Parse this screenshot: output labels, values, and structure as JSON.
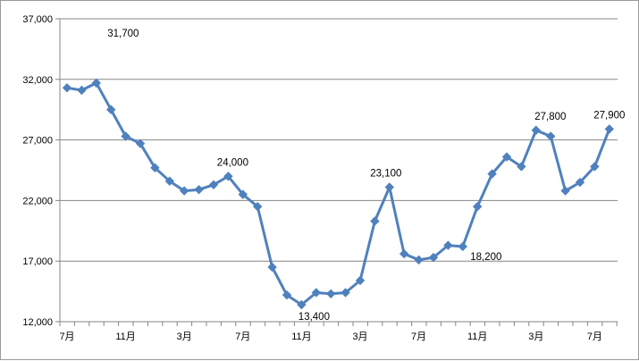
{
  "chart_data": {
    "type": "line",
    "title": "",
    "xlabel": "",
    "ylabel": "",
    "ylim": [
      12000,
      37000
    ],
    "yticks": [
      12000,
      17000,
      22000,
      27000,
      32000,
      37000
    ],
    "ytick_labels": [
      "12,000",
      "17,000",
      "22,000",
      "27,000",
      "32,000",
      "37,000"
    ],
    "x_tick_labels": [
      "7月",
      "11月",
      "3月",
      "7月",
      "11月",
      "3月",
      "7月",
      "11月",
      "3月",
      "7月"
    ],
    "x_tick_every": 4,
    "grid": "horizontal",
    "legend": "none",
    "series": [
      {
        "values": [
          31300,
          31100,
          31700,
          29500,
          27300,
          26700,
          24700,
          23600,
          22800,
          22900,
          23300,
          24000,
          22500,
          21500,
          16500,
          14200,
          13400,
          14400,
          14300,
          14400,
          15400,
          20300,
          23100,
          17600,
          17100,
          17300,
          18300,
          18200,
          21500,
          24200,
          25600,
          24800,
          27800,
          27300,
          22800,
          23500,
          24800,
          27900
        ],
        "color": "#4F81BD"
      }
    ],
    "data_labels": [
      {
        "index": 2,
        "text": "31,700"
      },
      {
        "index": 11,
        "text": "24,000"
      },
      {
        "index": 16,
        "text": "13,400"
      },
      {
        "index": 22,
        "text": "23,100"
      },
      {
        "index": 27,
        "text": "18,200"
      },
      {
        "index": 32,
        "text": "27,800"
      },
      {
        "index": 37,
        "text": "27,900"
      }
    ]
  }
}
